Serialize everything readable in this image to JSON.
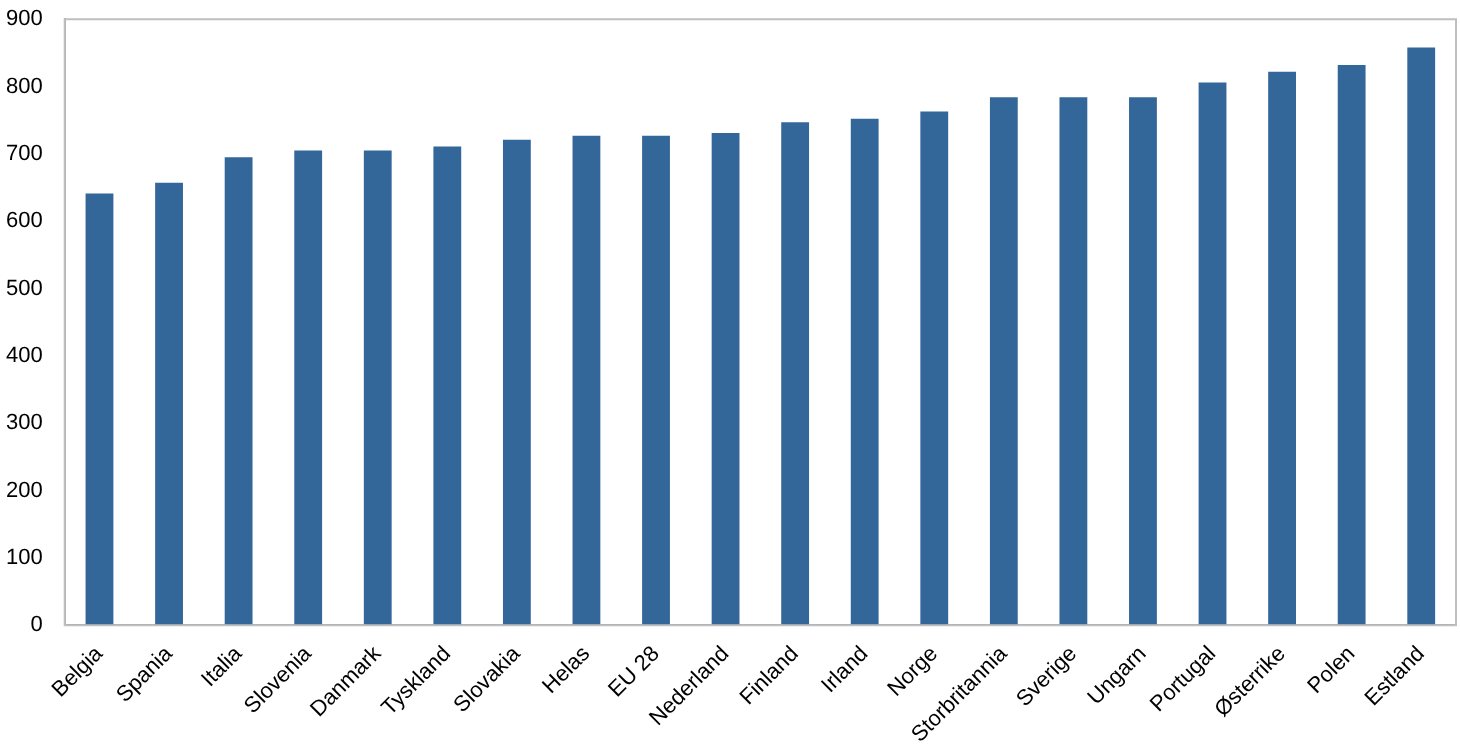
{
  "chart_data": {
    "type": "bar",
    "categories": [
      "Belgia",
      "Spania",
      "Italia",
      "Slovenia",
      "Danmark",
      "Tyskland",
      "Slovakia",
      "Helas",
      "EU 28",
      "Nederland",
      "Finland",
      "Irland",
      "Norge",
      "Storbritannia",
      "Sverige",
      "Ungarn",
      "Portugal",
      "Østerrike",
      "Polen",
      "Estland"
    ],
    "values": [
      641,
      657,
      695,
      705,
      705,
      711,
      721,
      727,
      727,
      731,
      747,
      752,
      763,
      784,
      784,
      784,
      806,
      822,
      832,
      858
    ],
    "color": "#336699",
    "ylim": [
      0,
      900
    ],
    "yticks": [
      0,
      100,
      200,
      300,
      400,
      500,
      600,
      700,
      800,
      900
    ],
    "grid": false,
    "legend": false
  }
}
